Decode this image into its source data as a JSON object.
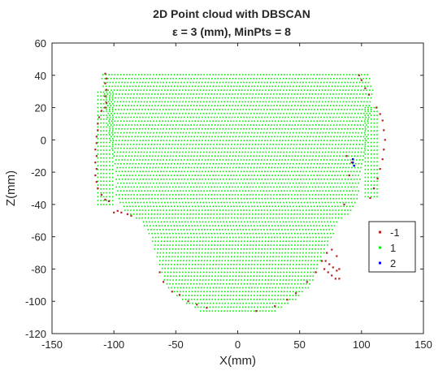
{
  "chart_data": {
    "type": "scatter",
    "title": "2D Point cloud with DBSCAN",
    "subtitle": "ε = 3 (mm),  MinPts = 8",
    "xlabel": "X(mm)",
    "ylabel": "Z(mm)",
    "xlim": [
      -150,
      150
    ],
    "ylim": [
      -120,
      60
    ],
    "xticks": [
      "-150",
      "-100",
      "-50",
      "0",
      "50",
      "100",
      "150"
    ],
    "yticks": [
      "60",
      "40",
      "20",
      "0",
      "-20",
      "-40",
      "-60",
      "-80",
      "-100",
      "-120"
    ],
    "grid": false,
    "legend_position": "right",
    "series": [
      {
        "name": "-1",
        "color": "#b22222",
        "points": [
          [
            -107,
            41
          ],
          [
            -106,
            38
          ],
          [
            -107,
            35
          ],
          [
            -106,
            31
          ],
          [
            -107,
            27
          ],
          [
            -106,
            23
          ],
          [
            -107,
            20
          ],
          [
            -110,
            18
          ],
          [
            -112,
            14
          ],
          [
            -113,
            10
          ],
          [
            -113,
            6
          ],
          [
            -114,
            2
          ],
          [
            -114,
            -2
          ],
          [
            -115,
            -6
          ],
          [
            -114,
            -10
          ],
          [
            -115,
            -14
          ],
          [
            -114,
            -18
          ],
          [
            -115,
            -22
          ],
          [
            -114,
            -26
          ],
          [
            -113,
            -30
          ],
          [
            -110,
            -34
          ],
          [
            -107,
            -37
          ],
          [
            -104,
            -38
          ],
          [
            -97,
            -44
          ],
          [
            -100,
            -45
          ],
          [
            -94,
            -45
          ],
          [
            -89,
            -46
          ],
          [
            -86,
            -47
          ],
          [
            -63,
            -82
          ],
          [
            -60,
            -88
          ],
          [
            -53,
            -94
          ],
          [
            -47,
            -96
          ],
          [
            -40,
            -100
          ],
          [
            -33,
            -102
          ],
          [
            -25,
            -104
          ],
          [
            15,
            -106
          ],
          [
            30,
            -103
          ],
          [
            40,
            -99
          ],
          [
            47,
            -95
          ],
          [
            56,
            -88
          ],
          [
            63,
            -82
          ],
          [
            98,
            40
          ],
          [
            100,
            37
          ],
          [
            103,
            32
          ],
          [
            106,
            28
          ],
          [
            112,
            20
          ],
          [
            115,
            16
          ],
          [
            117,
            12
          ],
          [
            118,
            6
          ],
          [
            119,
            0
          ],
          [
            118,
            -6
          ],
          [
            117,
            -12
          ],
          [
            115,
            -18
          ],
          [
            113,
            -24
          ],
          [
            110,
            -30
          ],
          [
            107,
            -36
          ],
          [
            88,
            -10
          ],
          [
            92,
            -14
          ],
          [
            90,
            -22
          ],
          [
            86,
            -40
          ],
          [
            68,
            -75
          ],
          [
            71,
            -75
          ],
          [
            74,
            -77
          ],
          [
            77,
            -79
          ],
          [
            80,
            -81
          ],
          [
            70,
            -80
          ],
          [
            73,
            -82
          ],
          [
            76,
            -84
          ],
          [
            79,
            -86
          ],
          [
            72,
            -70
          ],
          [
            76,
            -68
          ],
          [
            80,
            -72
          ],
          [
            82,
            -80
          ],
          [
            82,
            -86
          ]
        ]
      },
      {
        "name": "1",
        "color": "#00ee00",
        "points": []
      },
      {
        "name": "2",
        "color": "#0000ff",
        "points": [
          [
            93,
            -12
          ],
          [
            93,
            -14
          ],
          [
            94,
            -16
          ]
        ]
      }
    ]
  }
}
